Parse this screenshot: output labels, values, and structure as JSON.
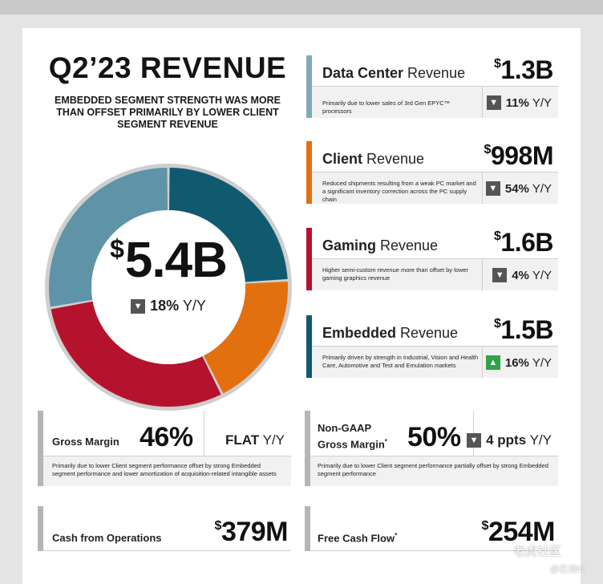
{
  "header": {
    "title": "Q2’23 REVENUE",
    "subtitle": "EMBEDDED SEGMENT STRENGTH WAS MORE THAN OFFSET PRIMARILY BY LOWER CLIENT SEGMENT REVENUE"
  },
  "total": {
    "currency": "$",
    "amount": "5.4B",
    "yoy_value": "18%",
    "yoy_unit": "Y/Y",
    "direction": "down"
  },
  "chart_data": {
    "type": "pie",
    "title": "",
    "categories": [
      "Data Center",
      "Client",
      "Gaming",
      "Embedded"
    ],
    "values": [
      1.3,
      0.998,
      1.6,
      1.5
    ],
    "colors": [
      "#105a70",
      "#e3700f",
      "#b5132d",
      "#5f93a8"
    ],
    "unit": "B"
  },
  "segments": [
    {
      "name_bold": "Data Center",
      "name_rest": " Revenue",
      "currency": "$",
      "value": "1.3B",
      "note": "Primarily due to lower sales of 3rd Gen EPYC™ processors",
      "yoy_value": "11%",
      "yoy_unit": "Y/Y",
      "direction": "down",
      "accent": "#7fa9ba"
    },
    {
      "name_bold": "Client",
      "name_rest": " Revenue",
      "currency": "$",
      "value": "998M",
      "note": "Reduced shipments resulting from a weak PC market and a significant inventory correction across the PC supply chain",
      "yoy_value": "54%",
      "yoy_unit": "Y/Y",
      "direction": "down",
      "accent": "#e3700f"
    },
    {
      "name_bold": "Gaming",
      "name_rest": " Revenue",
      "currency": "$",
      "value": "1.6B",
      "note": "Higher semi-custom revenue more than offset by lower gaming graphics revenue",
      "yoy_value": "4%",
      "yoy_unit": "Y/Y",
      "direction": "down",
      "accent": "#b5132d"
    },
    {
      "name_bold": "Embedded",
      "name_rest": " Revenue",
      "currency": "$",
      "value": "1.5B",
      "note": "Primarily driven by strength in Industrial, Vision and Health Care, Automotive and Test and Emulation markets",
      "yoy_value": "16%",
      "yoy_unit": "Y/Y",
      "direction": "up",
      "accent": "#105a70"
    }
  ],
  "gross_margin": {
    "label": "Gross Margin",
    "value": "46%",
    "change_bold": "FLAT",
    "change_unit": " Y/Y",
    "note": "Primarily due to lower Client segment performance offset by strong Embedded segment performance and lower amortization of acquisition-related intangible assets"
  },
  "non_gaap_margin": {
    "label_line1": "Non-GAAP",
    "label_line2": "Gross Margin",
    "footnote_mark": "*",
    "value": "50%",
    "change_bold": "4 ppts",
    "change_unit": " Y/Y",
    "direction": "down",
    "note": "Primarily due to lower Client segment performance partially offset by strong Embedded segment performance"
  },
  "cash_ops": {
    "label": "Cash from Operations",
    "currency": "$",
    "value": "379M"
  },
  "fcf": {
    "label": "Free Cash Flow",
    "footnote_mark": "*",
    "currency": "$",
    "value": "254M"
  },
  "watermark": {
    "line1": "老虎社区",
    "line2": "@芯潮IC"
  }
}
